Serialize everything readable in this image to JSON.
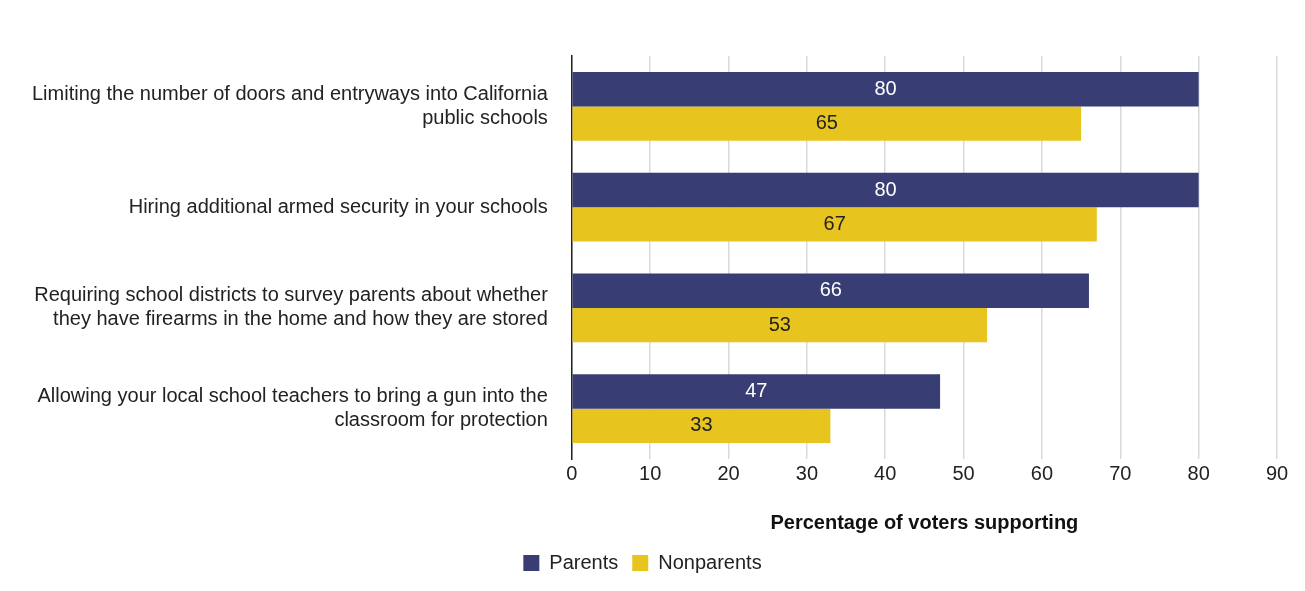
{
  "chart_data": {
    "type": "bar",
    "orientation": "horizontal",
    "xlabel": "Percentage of voters supporting",
    "categories": [
      "Limiting the number of doors and entryways into California public schools",
      "Hiring additional armed security in your schools",
      "Requiring school districts to survey parents about whether they have firearms in the home and how they are stored",
      "Allowing your local school teachers to bring a gun into the classroom for protection"
    ],
    "series": [
      {
        "name": "Parents",
        "color": "#383d73",
        "values": [
          80,
          80,
          66,
          47
        ]
      },
      {
        "name": "Nonparents",
        "color": "#e8c41e",
        "values": [
          65,
          67,
          53,
          33
        ]
      }
    ],
    "xlim": [
      0,
      90
    ],
    "xticks": [
      0,
      10,
      20,
      30,
      40,
      50,
      60,
      70,
      80,
      90
    ],
    "grid": "x",
    "legend": "bottom",
    "data_labels": true
  }
}
